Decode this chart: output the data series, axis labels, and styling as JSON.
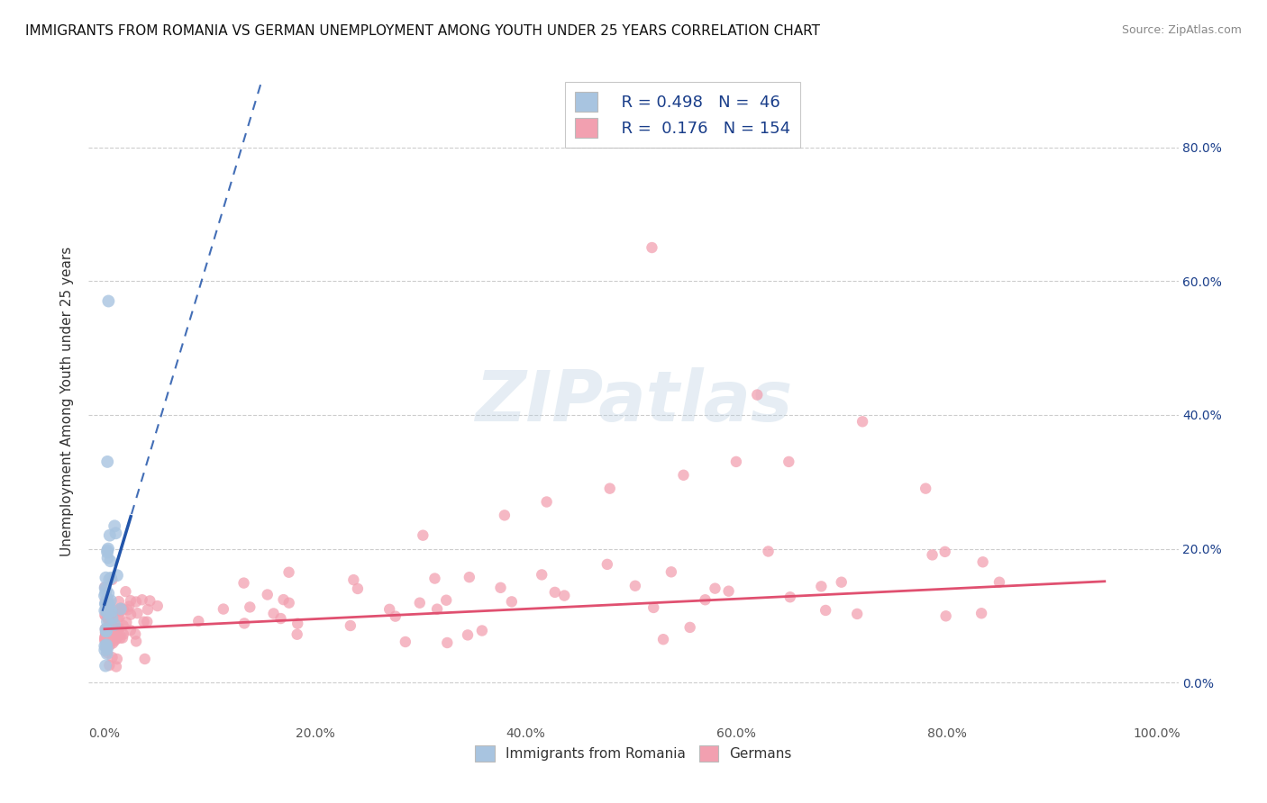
{
  "title": "IMMIGRANTS FROM ROMANIA VS GERMAN UNEMPLOYMENT AMONG YOUTH UNDER 25 YEARS CORRELATION CHART",
  "source": "Source: ZipAtlas.com",
  "ylabel": "Unemployment Among Youth under 25 years",
  "right_yticks": [
    0.0,
    0.2,
    0.4,
    0.6,
    0.8
  ],
  "right_yticklabels": [
    "0.0%",
    "20.0%",
    "40.0%",
    "60.0%",
    "80.0%"
  ],
  "xticks": [
    0.0,
    0.2,
    0.4,
    0.6,
    0.8,
    1.0
  ],
  "xticklabels": [
    "0.0%",
    "20.0%",
    "40.0%",
    "60.0%",
    "80.0%",
    "100.0%"
  ],
  "legend_R1": "R = 0.498",
  "legend_N1": "N =  46",
  "legend_R2": "R =  0.176",
  "legend_N2": "N = 154",
  "blue_color": "#a8c4e0",
  "pink_color": "#f2a0b0",
  "blue_line_color": "#2255aa",
  "pink_line_color": "#e05070",
  "legend_text_color": "#1a3e8a",
  "watermark": "ZIPatlas",
  "background_color": "#ffffff",
  "grid_color": "#c8c8c8",
  "blue_marker_size": 100,
  "pink_marker_size": 80
}
